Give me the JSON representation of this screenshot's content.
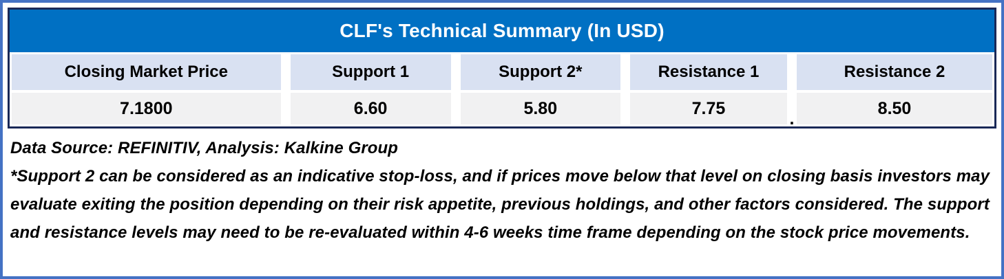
{
  "table": {
    "title": "CLF's Technical Summary (In USD)",
    "columns": [
      "Closing Market Price",
      "Support 1",
      "Support 2*",
      "Resistance 1",
      "Resistance 2"
    ],
    "values": [
      "7.1800",
      "6.60",
      "5.80",
      "7.75",
      "8.50"
    ],
    "stray_period": "."
  },
  "footnotes": {
    "source": "Data Source: REFINITIV, Analysis: Kalkine Group",
    "disclaimer": "*Support 2 can be considered as an indicative stop-loss, and if prices move below that level on closing basis investors may evaluate exiting the position depending on their risk appetite, previous holdings, and other factors considered. The support and resistance levels may need to be re-evaluated within 4-6 weeks time frame depending on the stock price movements."
  },
  "colors": {
    "outer_frame": "#4472C4",
    "table_border": "#192857",
    "title_bar_bg": "#0070C3",
    "title_text": "#FFFFFF",
    "header_cell_bg": "#D9E1F2",
    "value_cell_bg": "#F1F1F2",
    "body_text": "#000000"
  },
  "chart_data": {
    "type": "table",
    "title": "CLF's Technical Summary (In USD)",
    "columns": [
      "Closing Market Price",
      "Support 1",
      "Support 2*",
      "Resistance 1",
      "Resistance 2"
    ],
    "rows": [
      [
        "7.1800",
        "6.60",
        "5.80",
        "7.75",
        "8.50"
      ]
    ]
  }
}
